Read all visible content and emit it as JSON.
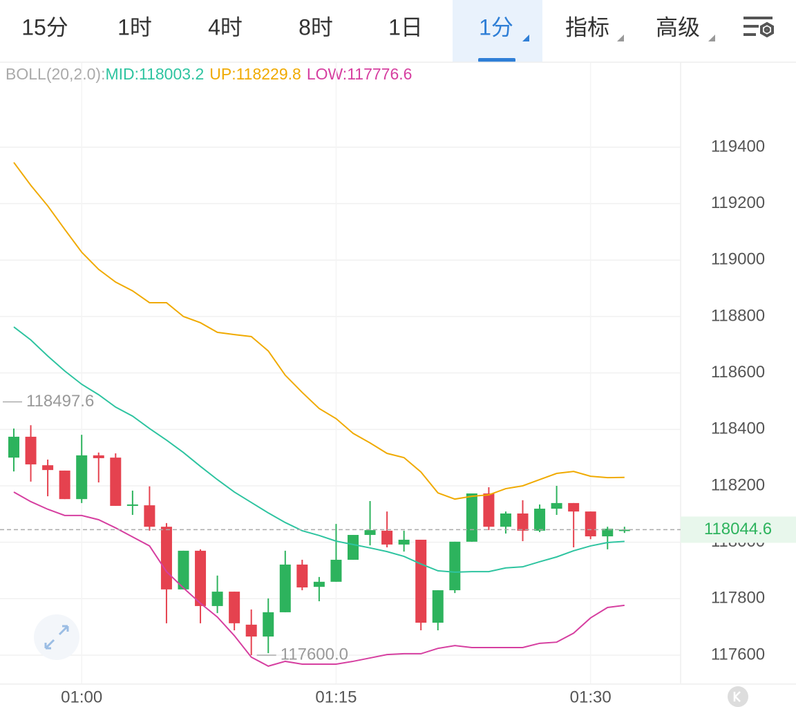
{
  "tabs": [
    "15分",
    "1时",
    "4时",
    "8时",
    "1日",
    "1分",
    "指标",
    "高级"
  ],
  "chart_data": {
    "type": "candlestick",
    "indicator_label": "BOLL(20,2.0):",
    "categories": [
      null,
      null,
      null,
      null,
      "01:00",
      null,
      null,
      null,
      null,
      null,
      null,
      null,
      null,
      null,
      null,
      null,
      null,
      null,
      null,
      "01:15",
      null,
      null,
      null,
      null,
      null,
      null,
      null,
      null,
      null,
      null,
      null,
      null,
      null,
      null,
      "01:30",
      null,
      null
    ],
    "open": [
      118300,
      118374,
      118273,
      118254,
      118153,
      118308,
      118300,
      118129,
      118131,
      118055,
      117833,
      117970,
      117774,
      117825,
      117708,
      117666,
      117752,
      117921,
      117842,
      117860,
      117938,
      118026,
      118041,
      117992,
      118009,
      117715,
      117830,
      118002,
      118173,
      118055,
      118102,
      118041,
      118119,
      118139,
      118109,
      118021,
      118043
    ],
    "high": [
      118403,
      118415,
      118293,
      118254,
      118381,
      118318,
      118315,
      118183,
      118198,
      118068,
      117970,
      117975,
      117882,
      117825,
      117762,
      117801,
      117970,
      117938,
      117877,
      118065,
      118026,
      118146,
      118109,
      118041,
      118009,
      117830,
      118002,
      118173,
      118195,
      118109,
      118149,
      118134,
      118200,
      118139,
      118109,
      118055,
      118055
    ],
    "low": [
      118251,
      118215,
      118163,
      118153,
      118139,
      118212,
      118129,
      118097,
      118041,
      117713,
      117833,
      117713,
      117749,
      117688,
      117600,
      117607,
      117752,
      117830,
      117791,
      117860,
      117938,
      117989,
      117982,
      117967,
      117688,
      117688,
      117820,
      118002,
      118043,
      118031,
      118004,
      118036,
      118097,
      117982,
      118011,
      117975,
      118033
    ],
    "close": [
      118374,
      118276,
      118256,
      118153,
      118308,
      118298,
      118129,
      118134,
      118055,
      117833,
      117970,
      117774,
      117825,
      117713,
      117666,
      117752,
      117921,
      117840,
      117860,
      117938,
      118026,
      118043,
      117992,
      118009,
      117715,
      117830,
      118002,
      118173,
      118055,
      118102,
      118041,
      118119,
      118139,
      118109,
      118021,
      118048,
      118044.6
    ],
    "up_color": "#2db35d",
    "down_color": "#e5424f",
    "series": [
      {
        "name": "MID:118003.2",
        "color": "#2ec4a0",
        "values": [
          118763,
          118717,
          118660,
          118607,
          118560,
          118523,
          118479,
          118447,
          118403,
          118362,
          118318,
          118269,
          118222,
          118178,
          118141,
          118104,
          118070,
          118041,
          118024,
          118004,
          117992,
          117980,
          117967,
          117950,
          117923,
          117899,
          117894,
          117896,
          117896,
          117909,
          117913,
          117931,
          117948,
          117970,
          117987,
          117999,
          118003.2
        ]
      },
      {
        "name": "UP:118229.8",
        "color": "#f0aa00",
        "values": [
          119346,
          119265,
          119192,
          119109,
          119028,
          118967,
          118922,
          118891,
          118849,
          118849,
          118800,
          118778,
          118744,
          118736,
          118729,
          118678,
          118592,
          118531,
          118474,
          118438,
          118386,
          118352,
          118315,
          118300,
          118249,
          118175,
          118153,
          118163,
          118168,
          118190,
          118200,
          118222,
          118244,
          118251,
          118234,
          118229,
          118229.8
        ]
      },
      {
        "name": "LOW:117776.6",
        "color": "#d63fa0",
        "values": [
          118178,
          118144,
          118117,
          118095,
          118095,
          118080,
          118051,
          118019,
          117987,
          117896,
          117838,
          117784,
          117735,
          117669,
          117593,
          117561,
          117578,
          117568,
          117568,
          117568,
          117578,
          117590,
          117602,
          117605,
          117605,
          117624,
          117634,
          117627,
          117627,
          117627,
          117627,
          117642,
          117646,
          117678,
          117732,
          117769,
          117776.6
        ]
      }
    ],
    "last_price": 118044.6,
    "annotations": [
      {
        "value": 118497.6,
        "label": "118497.6"
      },
      {
        "value": 117600,
        "label": "117600.0"
      }
    ],
    "ylim": [
      117500,
      119700
    ],
    "yticks": [
      117600,
      117800,
      118000,
      118200,
      118400,
      118600,
      118800,
      119000,
      119200,
      119400
    ],
    "grid": true
  }
}
